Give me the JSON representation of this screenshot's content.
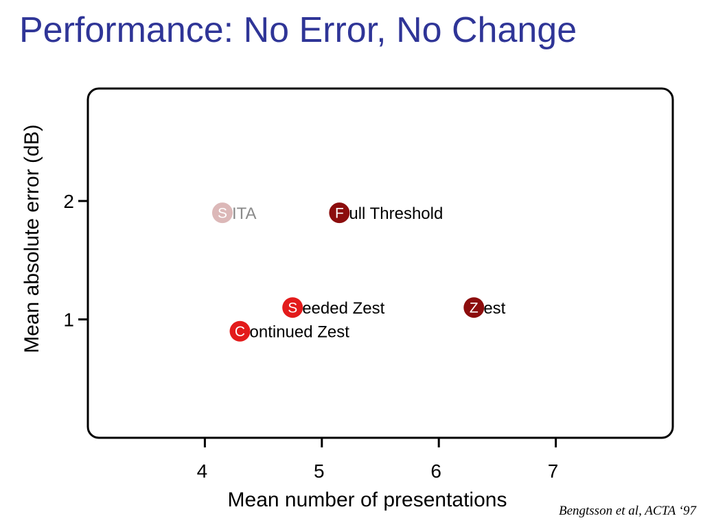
{
  "title": "Performance: No Error, No Change",
  "citation": "Bengtsson et al, ACTA ‘97",
  "chart_data": {
    "type": "scatter",
    "title": "",
    "xlabel": "Mean number of presentations",
    "ylabel": "Mean absolute error (dB)",
    "xlim": [
      3.0,
      8.0
    ],
    "ylim": [
      0.0,
      2.95
    ],
    "xticks": [
      4,
      5,
      6,
      7
    ],
    "yticks": [
      1,
      2
    ],
    "grid": false,
    "points": [
      {
        "initial": "S",
        "rest": "ITA",
        "x": 4.15,
        "y": 1.9,
        "color": "#dcb8b8",
        "label_color": "#8a8a8a"
      },
      {
        "initial": "F",
        "rest": "ull Threshold",
        "x": 5.15,
        "y": 1.9,
        "color": "#8c0d0d",
        "label_color": "#000000"
      },
      {
        "initial": "S",
        "rest": "eeded Zest",
        "x": 4.75,
        "y": 1.1,
        "color": "#e31b1b",
        "label_color": "#000000"
      },
      {
        "initial": "Z",
        "rest": "est",
        "x": 6.3,
        "y": 1.1,
        "color": "#8c0d0d",
        "label_color": "#000000"
      },
      {
        "initial": "C",
        "rest": "ontinued Zest",
        "x": 4.3,
        "y": 0.9,
        "color": "#e31b1b",
        "label_color": "#000000"
      }
    ]
  }
}
